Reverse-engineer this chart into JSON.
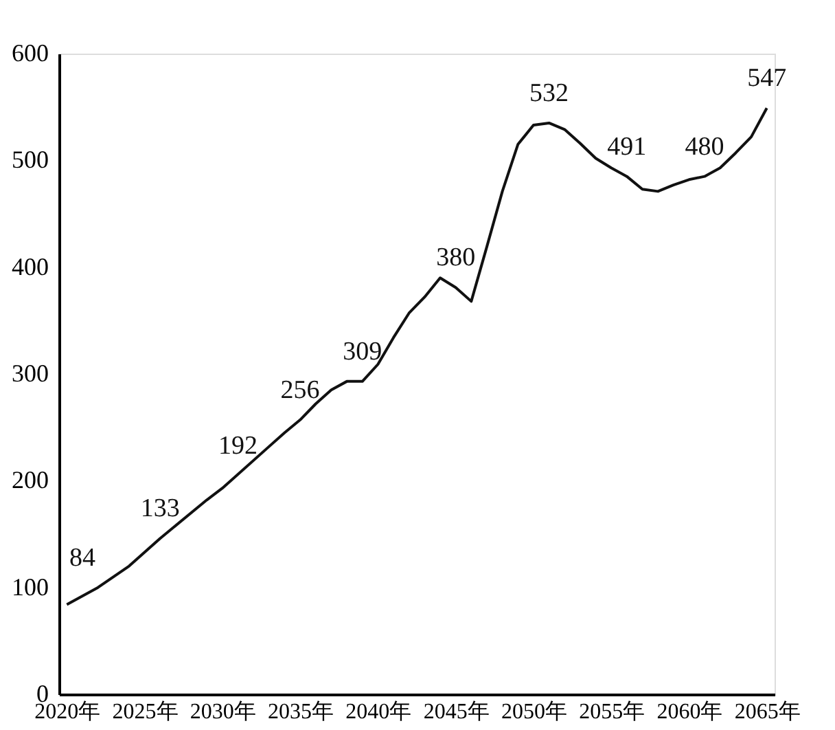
{
  "chart_data": {
    "type": "line",
    "x": [
      2020,
      2022,
      2024,
      2026,
      2029,
      2030,
      2033,
      2034,
      2035,
      2036,
      2037,
      2038,
      2039,
      2040,
      2041,
      2042,
      2043,
      2044,
      2045,
      2046,
      2047,
      2048,
      2049,
      2050,
      2051,
      2052,
      2053,
      2054,
      2055,
      2056,
      2057,
      2058,
      2059,
      2060,
      2061,
      2062,
      2063,
      2064,
      2065
    ],
    "values": [
      84,
      100,
      120,
      146,
      182,
      193,
      232,
      245,
      257,
      272,
      285,
      293,
      293,
      309,
      334,
      357,
      372,
      390,
      381,
      368,
      419,
      471,
      515,
      533,
      535,
      529,
      516,
      502,
      493,
      485,
      473,
      471,
      477,
      482,
      485,
      493,
      507,
      522,
      549
    ],
    "color": "#111111",
    "xlim": [
      2019.5,
      2065.5
    ],
    "xticks": [
      {
        "value": 2020,
        "label": "2020年"
      },
      {
        "value": 2025,
        "label": "2025年"
      },
      {
        "value": 2030,
        "label": "2030年"
      },
      {
        "value": 2035,
        "label": "2035年"
      },
      {
        "value": 2040,
        "label": "2040年"
      },
      {
        "value": 2045,
        "label": "2045年"
      },
      {
        "value": 2050,
        "label": "2050年"
      },
      {
        "value": 2055,
        "label": "2055年"
      },
      {
        "value": 2060,
        "label": "2060年"
      },
      {
        "value": 2065,
        "label": "2065年"
      }
    ],
    "ylim": [
      0,
      600
    ],
    "yticks": [
      0,
      100,
      200,
      300,
      400,
      500,
      600
    ],
    "grid": false,
    "marker": "none",
    "line_style": "solid",
    "annotations": [
      {
        "text": "84",
        "x": 2021,
        "y": 100
      },
      {
        "text": "133",
        "x": 2026,
        "y": 146
      },
      {
        "text": "192",
        "x": 2031,
        "y": 205
      },
      {
        "text": "256",
        "x": 2035,
        "y": 257
      },
      {
        "text": "309",
        "x": 2039,
        "y": 293
      },
      {
        "text": "380",
        "x": 2045,
        "y": 381
      },
      {
        "text": "532",
        "x": 2051,
        "y": 535
      },
      {
        "text": "491",
        "x": 2056,
        "y": 485
      },
      {
        "text": "480",
        "x": 2061,
        "y": 485
      },
      {
        "text": "547",
        "x": 2065,
        "y": 549
      }
    ]
  }
}
